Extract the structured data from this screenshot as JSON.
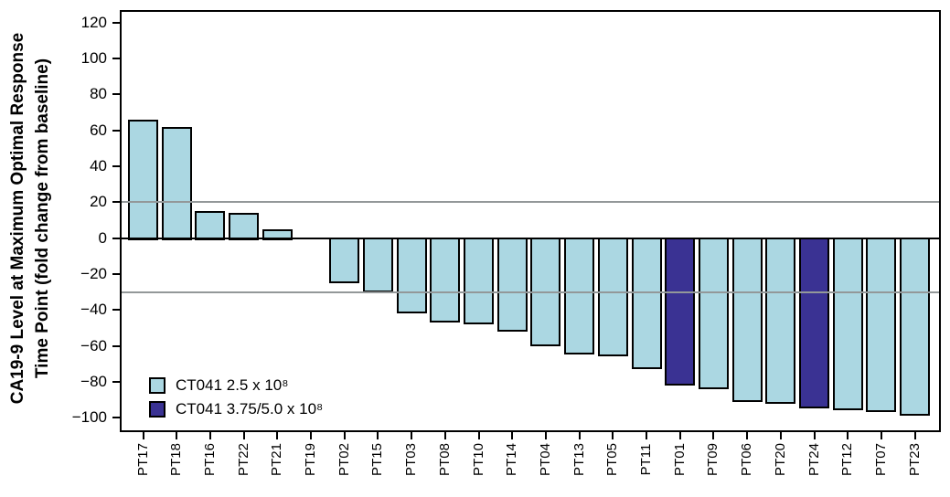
{
  "figure": {
    "y_axis_title_line1": "CA19-9 Level at Maximum Optimal Response",
    "y_axis_title_line2": "Time Point (fold change from baseline)"
  },
  "chart_data": {
    "type": "bar",
    "subtype": "waterfall",
    "title": "",
    "xlabel": "",
    "ylabel": "CA19-9 Level at Maximum Optimal Response Time Point (fold change from baseline)",
    "categories": [
      "PT17",
      "PT18",
      "PT16",
      "PT22",
      "PT21",
      "PT19",
      "PT02",
      "PT15",
      "PT03",
      "PT08",
      "PT10",
      "PT14",
      "PT04",
      "PT13",
      "PT05",
      "PT11",
      "PT01",
      "PT09",
      "PT06",
      "PT20",
      "PT24",
      "PT12",
      "PT07",
      "PT23"
    ],
    "values": [
      66,
      62,
      15,
      14,
      5,
      0,
      -25,
      -30,
      -42,
      -47,
      -48,
      -52,
      -60,
      -65,
      -66,
      -73,
      -82,
      -84,
      -91,
      -92,
      -95,
      -96,
      -97,
      -99
    ],
    "groups": [
      "low",
      "low",
      "low",
      "low",
      "low",
      "low",
      "low",
      "low",
      "low",
      "low",
      "low",
      "low",
      "low",
      "low",
      "low",
      "low",
      "high",
      "low",
      "low",
      "low",
      "high",
      "low",
      "low",
      "low"
    ],
    "colors": {
      "low": "#ABD7E2",
      "high": "#3A3293"
    },
    "legend": [
      {
        "id": "low",
        "label": "CT041 2.5 x 10⁸",
        "color": "#ABD7E2"
      },
      {
        "id": "high",
        "label": "CT041 3.75/5.0 x 10⁸",
        "color": "#3A3293"
      }
    ],
    "legend_position": "inside-lower-left",
    "yticks": [
      120,
      100,
      80,
      60,
      40,
      20,
      0,
      -20,
      -40,
      -60,
      -80,
      -100
    ],
    "ylim": [
      -107,
      126
    ],
    "reference_lines": [
      20,
      -30
    ],
    "reference_line_color": "#939899",
    "grid": false,
    "bar_border_color": "#000000",
    "background_color": "#FFFFFF"
  }
}
